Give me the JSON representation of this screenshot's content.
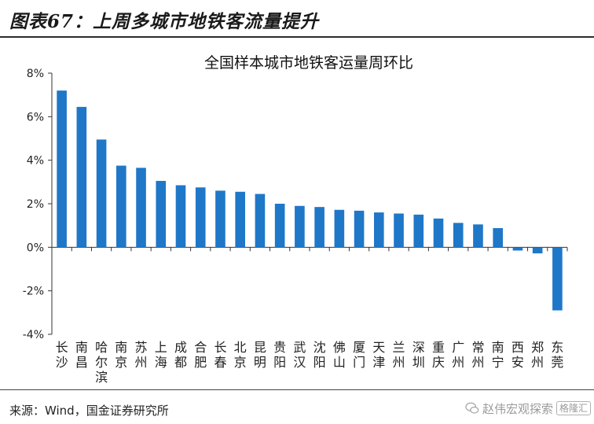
{
  "page": {
    "title": "图表67：上周多城市地铁客流量提升",
    "source": "来源：Wind，国金证券研究所",
    "watermark_text": "赵伟宏观探索",
    "watermark_brand": "格隆汇"
  },
  "colors": {
    "bar": "#1f77c8",
    "axis": "#333333",
    "text": "#222222"
  },
  "chart_data": {
    "type": "bar",
    "title": "全国样本城市地铁客运量周环比",
    "categories": [
      "长沙",
      "南昌",
      "哈尔滨",
      "南京",
      "苏州",
      "上海",
      "成都",
      "合肥",
      "长春",
      "北京",
      "昆明",
      "贵阳",
      "武汉",
      "沈阳",
      "佛山",
      "厦门",
      "天津",
      "兰州",
      "深圳",
      "重庆",
      "广州",
      "常州",
      "南宁",
      "西安",
      "郑州",
      "东莞"
    ],
    "values": [
      7.2,
      6.45,
      4.95,
      3.75,
      3.65,
      3.05,
      2.85,
      2.75,
      2.6,
      2.55,
      2.45,
      2.0,
      1.9,
      1.85,
      1.72,
      1.68,
      1.6,
      1.55,
      1.5,
      1.32,
      1.12,
      1.05,
      0.88,
      -0.15,
      -0.28,
      -2.9
    ],
    "y_unit": "%",
    "ylim": [
      -4,
      8
    ],
    "yticks": [
      -4,
      -2,
      0,
      2,
      4,
      6,
      8
    ],
    "ytick_labels": [
      "-4%",
      "-2%",
      "0%",
      "2%",
      "4%",
      "6%",
      "8%"
    ],
    "grid": false,
    "legend": "none"
  }
}
